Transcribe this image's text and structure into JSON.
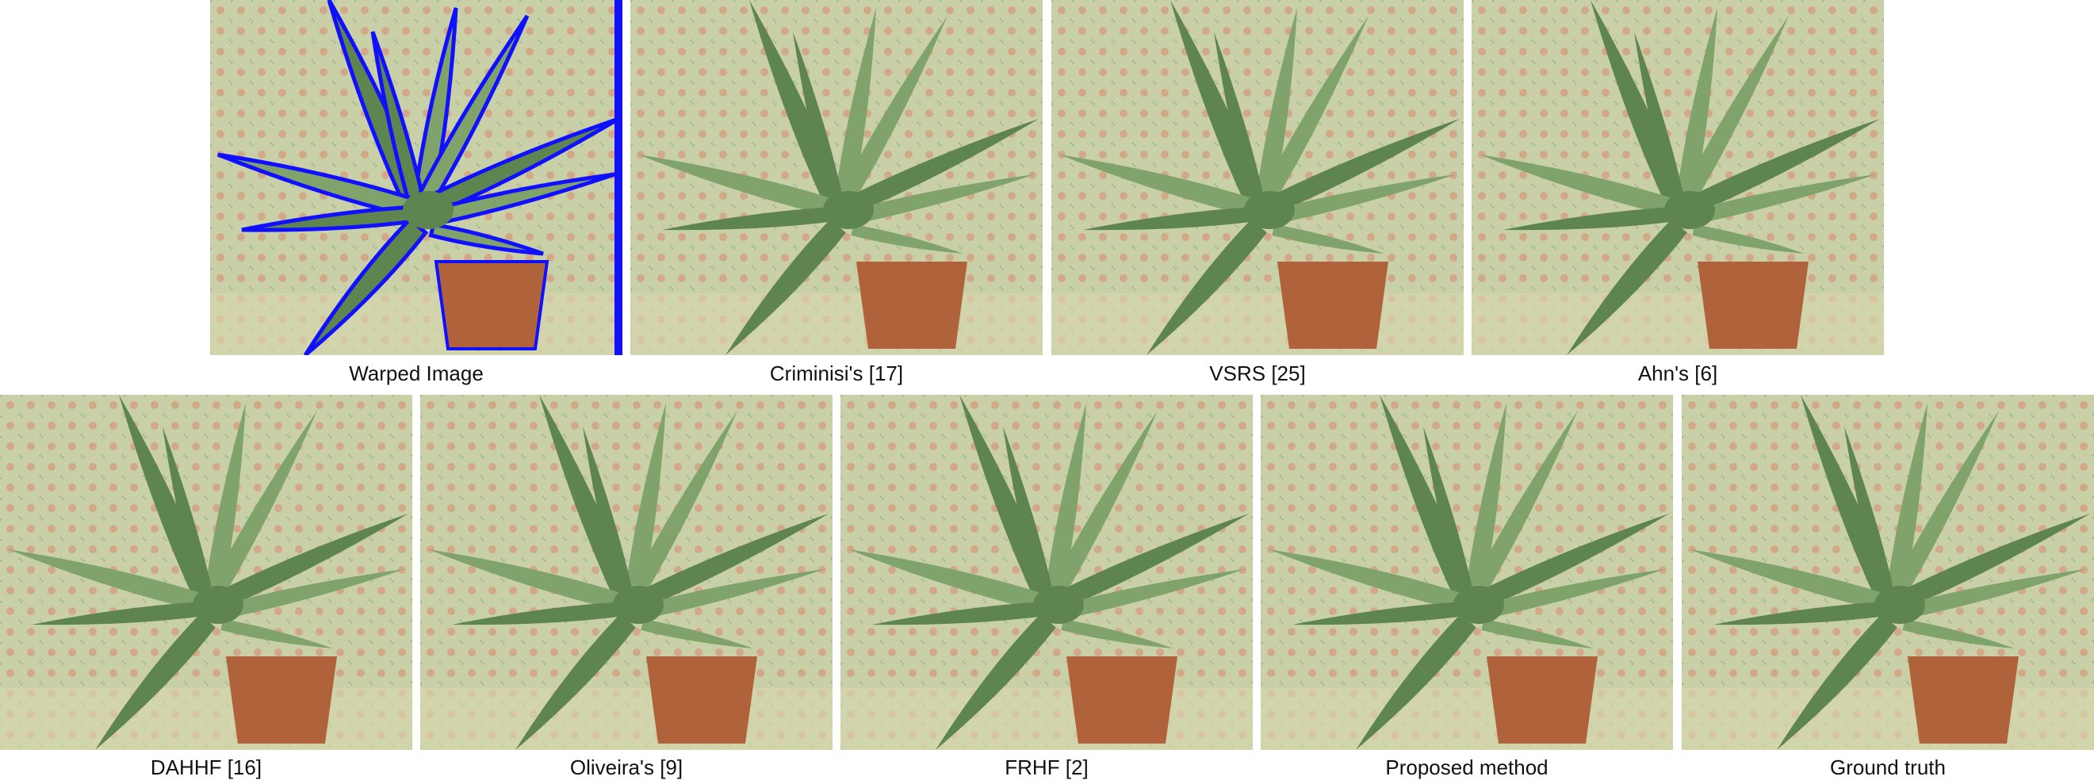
{
  "figure": {
    "panels": [
      {
        "caption": "Warped Image",
        "holes": true
      },
      {
        "caption": "Criminisi's [17]",
        "holes": false
      },
      {
        "caption": "VSRS [25]",
        "holes": false
      },
      {
        "caption": "Ahn's [6]",
        "holes": false
      },
      {
        "caption": "DAHHF [16]",
        "holes": false
      },
      {
        "caption": "Oliveira's [9]",
        "holes": false
      },
      {
        "caption": "FRHF [2]",
        "holes": false
      },
      {
        "caption": "Proposed method",
        "holes": false
      },
      {
        "caption": "Ground truth",
        "holes": false
      }
    ],
    "colors": {
      "fabric": "#c9cfa6",
      "fabric_motif": "#d98a6e",
      "leaf": "#7fa36a",
      "leaf_dark": "#5e8450",
      "pot": "#b0623a",
      "hole": "#1010ff"
    }
  }
}
